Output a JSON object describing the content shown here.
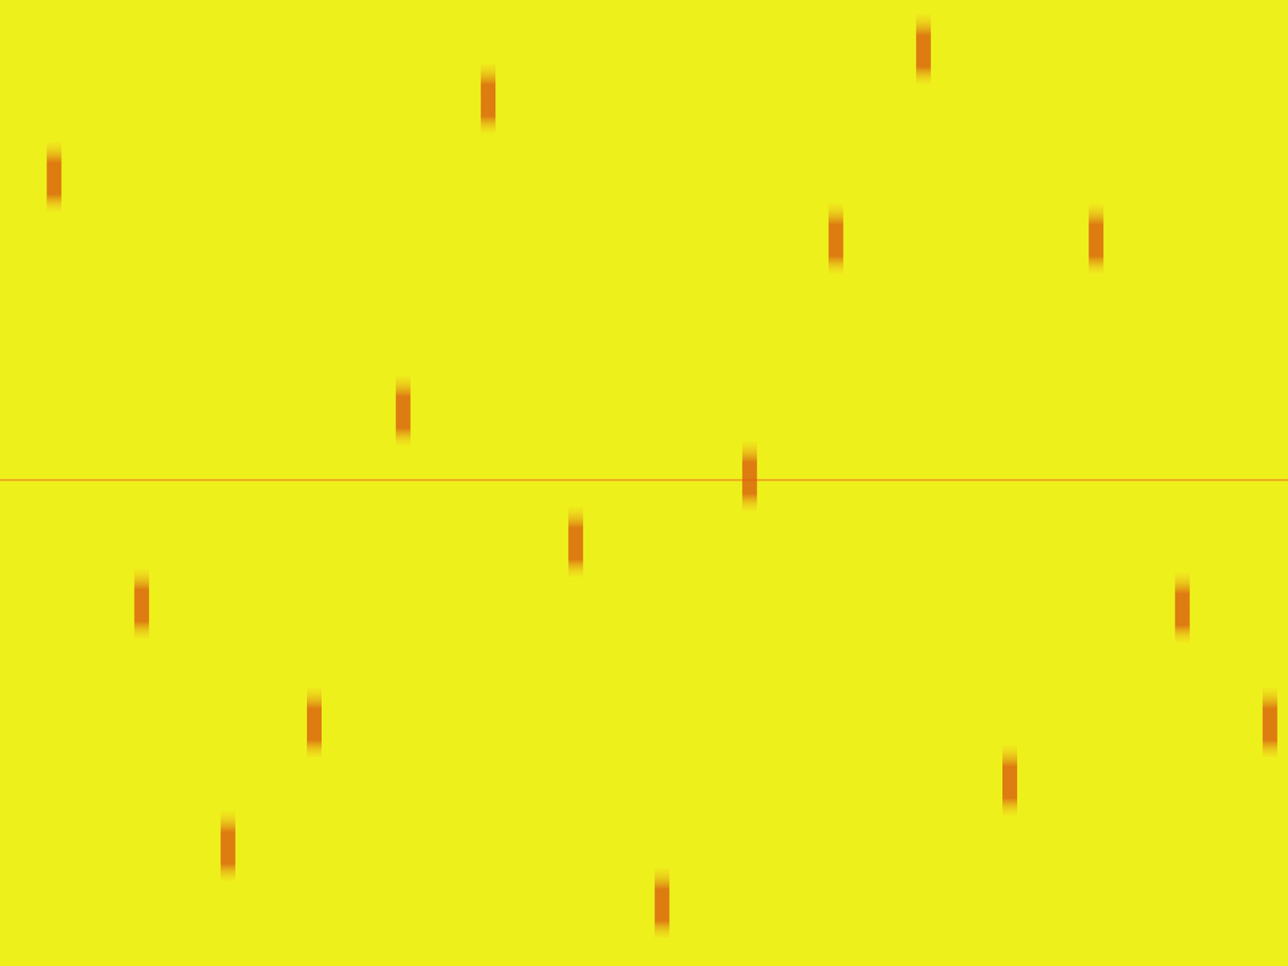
{
  "chart_data": {
    "type": "scatter",
    "xlim": [
      0,
      100
    ],
    "ylim": [
      0,
      100
    ],
    "xticks": [
      0,
      100
    ],
    "yticks": [
      0,
      100
    ],
    "grid": false,
    "tick_labels": false,
    "series": [
      {
        "type": "scatter",
        "color": "#d95f0e",
        "marker": "rect",
        "x": [
          4.2,
          37.9,
          71.7,
          64.9,
          85.1,
          31.3,
          58.2,
          44.7,
          11.0,
          91.8,
          24.4,
          98.6,
          78.4,
          17.7,
          51.4
        ],
        "values": [
          81.7,
          89.8,
          94.9,
          75.3,
          75.3,
          57.5,
          50.7,
          43.9,
          37.5,
          37.1,
          25.2,
          25.2,
          19.2,
          12.4,
          6.5
        ]
      },
      {
        "type": "line",
        "color": "#f0a21e",
        "line_style": "solid",
        "x": [
          0,
          100
        ],
        "values": [
          50.3,
          50.3
        ]
      }
    ]
  }
}
